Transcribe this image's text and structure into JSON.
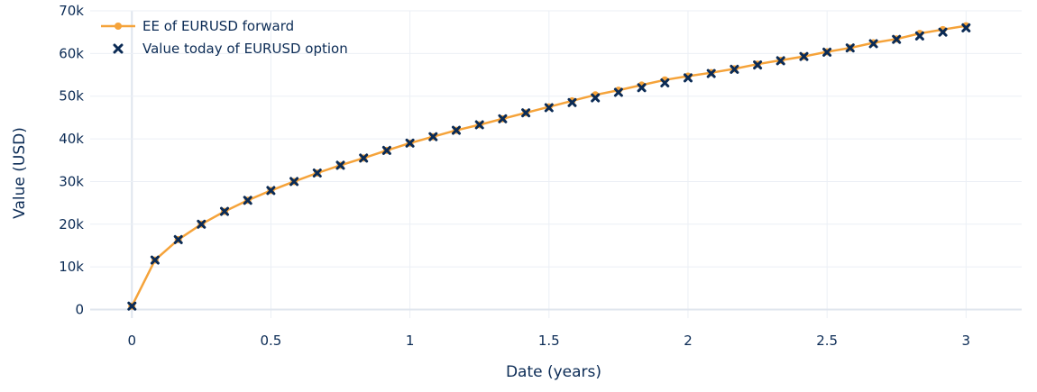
{
  "chart_data": {
    "type": "line",
    "title": "",
    "xlabel": "Date (years)",
    "ylabel": "Value (USD)",
    "xlim": [
      -0.15,
      3.2
    ],
    "ylim": [
      -2000,
      70000
    ],
    "grid": true,
    "legend_position": "top-left",
    "x_ticks": [
      0,
      0.5,
      1,
      1.5,
      2,
      2.5,
      3
    ],
    "x_tick_labels": [
      "0",
      "0.5",
      "1",
      "1.5",
      "2",
      "2.5",
      "3"
    ],
    "y_ticks": [
      0,
      10000,
      20000,
      30000,
      40000,
      50000,
      60000,
      70000
    ],
    "y_tick_labels": [
      "0",
      "10k",
      "20k",
      "30k",
      "40k",
      "50k",
      "60k",
      "70k"
    ],
    "x": [
      0,
      0.0833,
      0.1667,
      0.25,
      0.3333,
      0.4167,
      0.5,
      0.5833,
      0.6667,
      0.75,
      0.8333,
      0.9167,
      1,
      1.0833,
      1.1667,
      1.25,
      1.3333,
      1.4167,
      1.5,
      1.5833,
      1.6667,
      1.75,
      1.8333,
      1.9167,
      2,
      2.0833,
      2.1667,
      2.25,
      2.3333,
      2.4167,
      2.5,
      2.5833,
      2.6667,
      2.75,
      2.8333,
      2.9167,
      3
    ],
    "series": [
      {
        "name": "EE of EURUSD forward",
        "mode": "lines+markers",
        "color": "#f5a33a",
        "values": [
          800,
          11600,
          16400,
          20000,
          23000,
          25600,
          27900,
          30000,
          32000,
          33800,
          35500,
          37300,
          39000,
          40500,
          42000,
          43300,
          44700,
          46100,
          47500,
          48900,
          50300,
          51400,
          52600,
          53800,
          54700,
          55500,
          56400,
          57500,
          58400,
          59300,
          60400,
          61300,
          62500,
          63400,
          64700,
          65600,
          66500
        ]
      },
      {
        "name": "Value today of EURUSD option",
        "mode": "markers",
        "marker": "x",
        "color": "#0b2b55",
        "values": [
          800,
          11600,
          16400,
          20000,
          23000,
          25600,
          27900,
          30000,
          32000,
          33800,
          35500,
          37300,
          39000,
          40500,
          42000,
          43300,
          44700,
          46100,
          47300,
          48500,
          49600,
          50900,
          52000,
          53100,
          54300,
          55300,
          56300,
          57300,
          58300,
          59300,
          60300,
          61300,
          62300,
          63300,
          64100,
          65000,
          66000
        ]
      }
    ]
  }
}
